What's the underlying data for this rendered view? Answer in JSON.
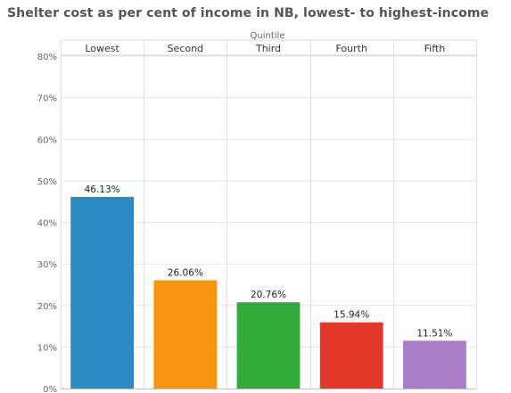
{
  "chart_data": {
    "type": "bar",
    "title": "Shelter cost as per cent of income in NB, lowest- to highest-income",
    "column_header": "Quintile",
    "categories": [
      "Lowest",
      "Second",
      "Third",
      "Fourth",
      "Fifth"
    ],
    "values": [
      46.13,
      26.06,
      20.76,
      15.94,
      11.51
    ],
    "data_labels": [
      "46.13%",
      "26.06%",
      "20.76%",
      "15.94%",
      "11.51%"
    ],
    "colors": [
      "#2b8cc4",
      "#f7950f",
      "#33ab3a",
      "#e0392b",
      "#a97ec8"
    ],
    "ylim": [
      0,
      80
    ],
    "yticks": [
      0,
      10,
      20,
      30,
      40,
      50,
      60,
      70,
      80
    ],
    "ytick_labels": [
      "0%",
      "10%",
      "20%",
      "30%",
      "40%",
      "50%",
      "60%",
      "70%",
      "80%"
    ],
    "xlabel": "",
    "ylabel": "",
    "grid": "horizontal",
    "legend": "none"
  }
}
